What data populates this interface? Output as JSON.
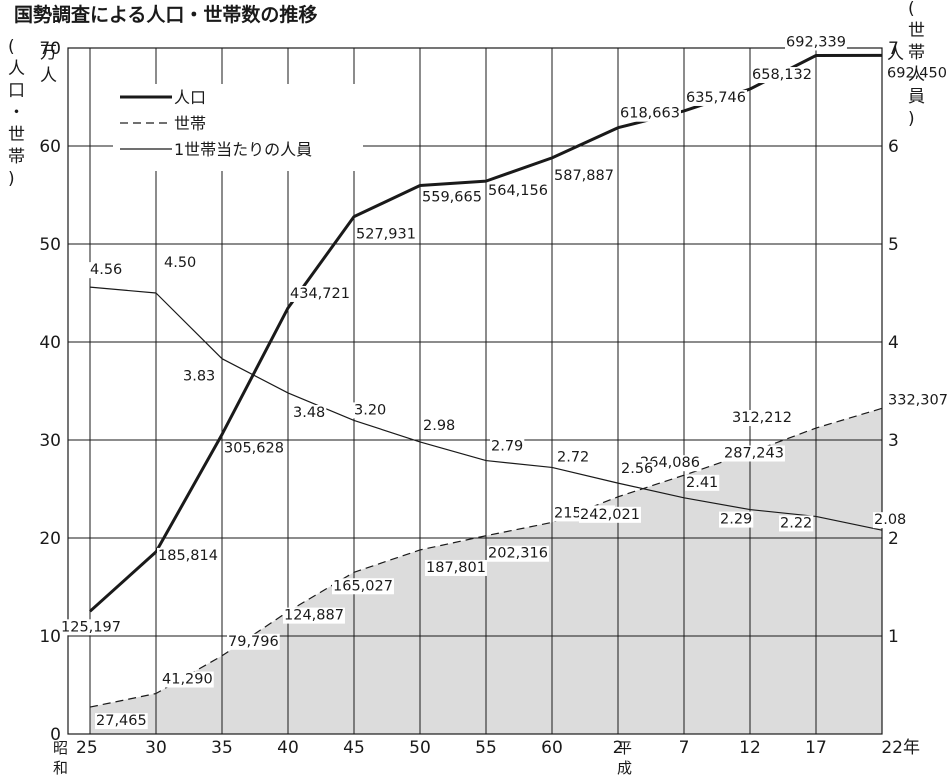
{
  "title": "国勢調査による人口・世帯数の推移",
  "left_axis": {
    "unit": "万人",
    "label": "(人口・世帯)"
  },
  "right_axis": {
    "unit": "人",
    "label": "(世帯人員)"
  },
  "era_labels": {
    "showa": "昭和",
    "heisei": "平成"
  },
  "chart_data": {
    "type": "line",
    "title": "国勢調査による人口・世帯数の推移",
    "categories": [
      "25",
      "30",
      "35",
      "40",
      "45",
      "50",
      "55",
      "60",
      "2",
      "7",
      "12",
      "17",
      "22年"
    ],
    "left_axis": {
      "ylim": [
        0,
        70
      ],
      "ticks": [
        "0",
        "10",
        "20",
        "30",
        "40",
        "50",
        "60",
        "70"
      ],
      "unit": "万人"
    },
    "right_axis": {
      "ylim": [
        0,
        7
      ],
      "ticks": [
        "1",
        "2",
        "3",
        "4",
        "5",
        "6",
        "7"
      ],
      "unit": "人"
    },
    "grid": true,
    "legend_position": "top-left",
    "series": [
      {
        "name": "人口",
        "axis": "left",
        "style": "thick-solid",
        "values": [
          125197,
          185814,
          305628,
          434721,
          527931,
          559665,
          564156,
          587887,
          618663,
          635746,
          658132,
          692339,
          692450
        ],
        "labels": [
          "125,197",
          "185,814",
          "305,628",
          "434,721",
          "527,931",
          "559,665",
          "564,156",
          "587,887",
          "618,663",
          "635,746",
          "658,132",
          "692,339",
          "692,450"
        ]
      },
      {
        "name": "世帯",
        "axis": "left",
        "style": "dashed-area",
        "fill": "#dcdcdc",
        "values": [
          27465,
          41290,
          79796,
          124887,
          165027,
          187801,
          202316,
          215909,
          242021,
          264086,
          287243,
          312212,
          332307
        ],
        "labels": [
          "27,465",
          "41,290",
          "79,796",
          "124,887",
          "165,027",
          "187,801",
          "202,316",
          "215,909",
          "242,021",
          "264,086",
          "287,243",
          "312,212",
          "332,307"
        ]
      },
      {
        "name": "1世帯当たりの人員",
        "axis": "right",
        "style": "thin-solid",
        "values": [
          4.56,
          4.5,
          3.83,
          3.48,
          3.2,
          2.98,
          2.79,
          2.72,
          2.56,
          2.41,
          2.29,
          2.22,
          2.08
        ],
        "labels": [
          "4.56",
          "4.50",
          "3.83",
          "3.48",
          "3.20",
          "2.98",
          "2.79",
          "2.72",
          "2.56",
          "2.41",
          "2.29",
          "2.22",
          "2.08"
        ]
      }
    ]
  }
}
